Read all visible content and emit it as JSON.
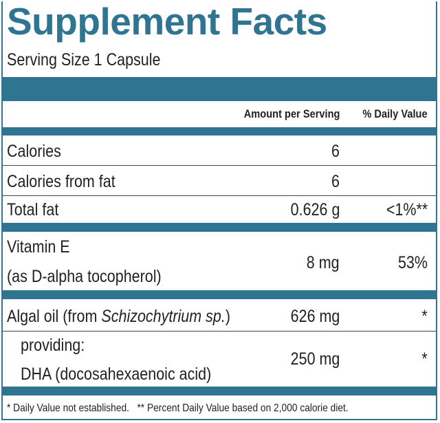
{
  "header": {
    "title": "Supplement Facts",
    "serving_size": "Serving Size 1 Capsule"
  },
  "columns": {
    "amount": "Amount per Serving",
    "daily_value": "% Daily Value"
  },
  "rows": [
    {
      "label": "Calories",
      "amount": "6"
    },
    {
      "label": "Calories from fat",
      "amount": "6"
    },
    {
      "label": "Total fat",
      "amount": "0.626 g",
      "daily_value": "<1%**"
    },
    {
      "label": "Vitamin E",
      "sublabel": "(as D-alpha tocopherol)",
      "amount": "8 mg",
      "daily_value": "53%"
    },
    {
      "label": "Algal oil (from ",
      "label_italic": "Schizochytrium sp.",
      "label_after": ")",
      "amount": "626 mg",
      "daily_value": "*"
    },
    {
      "label": "providing:",
      "sublabel": "DHA (docosahexaenoic acid)",
      "amount": "250 mg",
      "daily_value": "*"
    }
  ],
  "footnote": {
    "star": "*  Daily Value not established.",
    "double_star": "** Percent Daily Value based on 2,000 calorie diet."
  }
}
